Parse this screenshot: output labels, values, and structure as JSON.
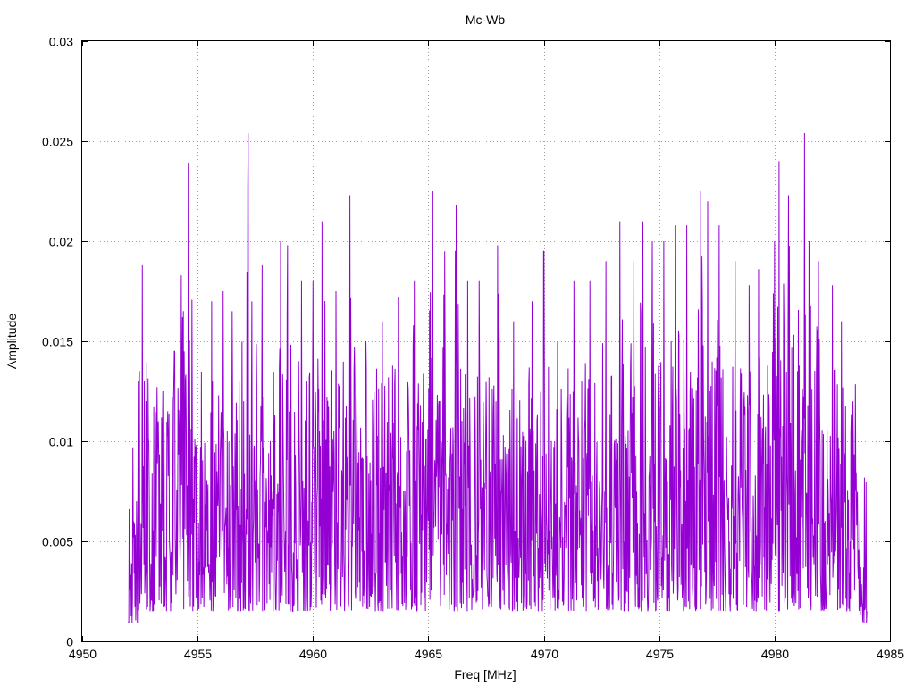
{
  "chart_data": {
    "type": "line",
    "title": "Mc-Wb",
    "xlabel": "Freq [MHz]",
    "ylabel": "Amplitude",
    "xlim": [
      4950,
      4985
    ],
    "ylim": [
      0,
      0.03
    ],
    "xticks": [
      "4950",
      "4955",
      "4960",
      "4965",
      "4970",
      "4975",
      "4980",
      "4985"
    ],
    "yticks": [
      "0",
      "0.005",
      "0.01",
      "0.015",
      "0.02",
      "0.025",
      "0.03"
    ],
    "grid": true,
    "legend": "none",
    "color": "#9400d3",
    "series": [
      {
        "x_start": 4952.0,
        "x_end": 4984.0,
        "peaks": [
          [
            4952.0,
            0.001
          ],
          [
            4952.2,
            0.0097
          ],
          [
            4952.6,
            0.0188
          ],
          [
            4952.7,
            0.013
          ],
          [
            4953.1,
            0.0117
          ],
          [
            4953.5,
            0.0125
          ],
          [
            4954.0,
            0.0145
          ],
          [
            4954.3,
            0.0183
          ],
          [
            4954.6,
            0.0239
          ],
          [
            4955.6,
            0.017
          ],
          [
            4956.1,
            0.0175
          ],
          [
            4956.5,
            0.0165
          ],
          [
            4957.2,
            0.0254
          ],
          [
            4957.8,
            0.0188
          ],
          [
            4958.6,
            0.02
          ],
          [
            4958.9,
            0.0198
          ],
          [
            4959.5,
            0.018
          ],
          [
            4960.0,
            0.018
          ],
          [
            4960.4,
            0.021
          ],
          [
            4961.0,
            0.0175
          ],
          [
            4961.6,
            0.0223
          ],
          [
            4962.3,
            0.015
          ],
          [
            4963.0,
            0.016
          ],
          [
            4963.7,
            0.0172
          ],
          [
            4964.4,
            0.018
          ],
          [
            4965.2,
            0.0225
          ],
          [
            4965.7,
            0.0195
          ],
          [
            4966.2,
            0.0218
          ],
          [
            4966.7,
            0.018
          ],
          [
            4967.2,
            0.018
          ],
          [
            4968.0,
            0.0198
          ],
          [
            4968.7,
            0.016
          ],
          [
            4969.5,
            0.017
          ],
          [
            4970.0,
            0.0195
          ],
          [
            4970.6,
            0.015
          ],
          [
            4971.3,
            0.018
          ],
          [
            4972.0,
            0.018
          ],
          [
            4972.7,
            0.019
          ],
          [
            4973.3,
            0.021
          ],
          [
            4973.9,
            0.019
          ],
          [
            4974.3,
            0.021
          ],
          [
            4974.7,
            0.02
          ],
          [
            4975.2,
            0.02
          ],
          [
            4975.7,
            0.0208
          ],
          [
            4976.2,
            0.0208
          ],
          [
            4976.8,
            0.0225
          ],
          [
            4977.1,
            0.022
          ],
          [
            4977.6,
            0.0208
          ],
          [
            4978.3,
            0.019
          ],
          [
            4978.9,
            0.0178
          ],
          [
            4979.3,
            0.0186
          ],
          [
            4980.0,
            0.02
          ],
          [
            4980.2,
            0.024
          ],
          [
            4980.6,
            0.0223
          ],
          [
            4981.3,
            0.0254
          ],
          [
            4981.5,
            0.02
          ],
          [
            4981.9,
            0.019
          ],
          [
            4982.5,
            0.0178
          ],
          [
            4982.9,
            0.016
          ],
          [
            4983.4,
            0.012
          ],
          [
            4983.7,
            0.006
          ],
          [
            4984.0,
            0.0015
          ]
        ]
      }
    ]
  }
}
